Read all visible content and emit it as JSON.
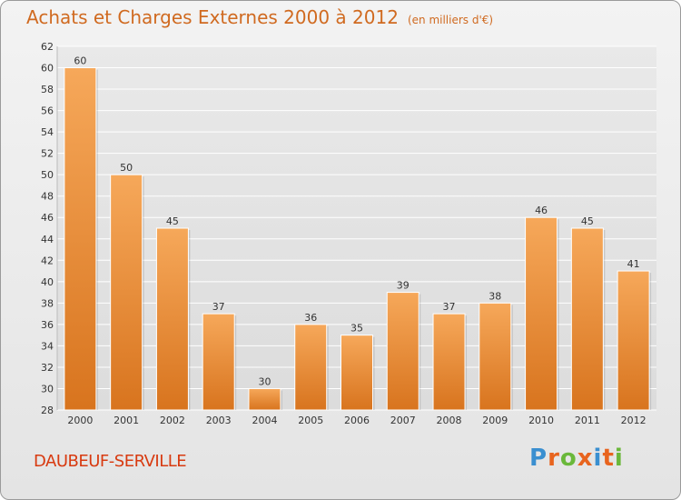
{
  "header": {
    "title": "Achats et Charges Externes 2000 à 2012",
    "unit": "(en milliers d'€)"
  },
  "footer": {
    "commune": "DAUBEUF-SERVILLE",
    "logo_text": "Proxiti"
  },
  "colors": {
    "title": "#d06a20",
    "commune": "#d83a10",
    "bar_top": "#f6a85a",
    "bar_bottom": "#d8741e",
    "grid": "#ffffff",
    "axis_text": "#333333"
  },
  "chart_data": {
    "type": "bar",
    "categories": [
      "2000",
      "2001",
      "2002",
      "2003",
      "2004",
      "2005",
      "2006",
      "2007",
      "2008",
      "2009",
      "2010",
      "2011",
      "2012"
    ],
    "values": [
      60,
      50,
      45,
      37,
      30,
      36,
      35,
      39,
      37,
      38,
      46,
      45,
      41
    ],
    "ylim": [
      28,
      62
    ],
    "yticks": [
      28,
      30,
      32,
      34,
      36,
      38,
      40,
      42,
      44,
      46,
      48,
      50,
      52,
      54,
      56,
      58,
      60,
      62
    ],
    "grid": true,
    "data_labels": true
  }
}
